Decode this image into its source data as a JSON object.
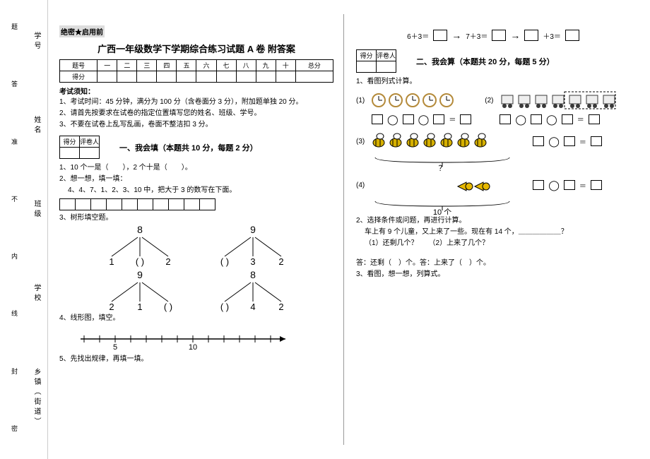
{
  "binding": {
    "outer": [
      "乡镇（街道）",
      "学校",
      "班级",
      "姓名",
      "学号"
    ],
    "inner": [
      "密",
      "封",
      "线",
      "内",
      "不",
      "准",
      "答",
      "题"
    ]
  },
  "confidential": "绝密★启用前",
  "title": "广西一年级数学下学期综合练习试题 A 卷  附答案",
  "score_table": {
    "headers": [
      "题号",
      "一",
      "二",
      "三",
      "四",
      "五",
      "六",
      "七",
      "八",
      "九",
      "十",
      "总分"
    ],
    "row_label": "得分"
  },
  "exam_notice_label": "考试须知：",
  "exam_notice": [
    "1、考试时间：45 分钟，满分为 100 分（含卷面分 3 分），附加题单独 20 分。",
    "2、请首先按要求在试卷的指定位置填写您的姓名、班级、学号。",
    "3、不要在试卷上乱写乱画，卷面不整洁扣 3 分。"
  ],
  "mini_score": {
    "c1": "得分",
    "c2": "评卷人"
  },
  "sectionA": {
    "title": "一、我会填（本题共 10 分，每题 2 分）",
    "q1": "1、10 个一是（　　），2 个十是（　　）。",
    "q2a": "2、想一想，填一填：",
    "q2b": "4、4、7、1、2、3、10 中，把大于 3 的数写在下面。",
    "q3": "3、树形填空题。",
    "trees": {
      "a": {
        "root": "8",
        "leaves": [
          "1",
          "( )",
          "2"
        ]
      },
      "b": {
        "root": "9",
        "leaves": [
          "( )",
          "3",
          "2"
        ]
      },
      "c": {
        "root": "9",
        "leaves": [
          "2",
          "1",
          "( )"
        ]
      },
      "d": {
        "root": "8",
        "leaves": [
          "( )",
          "4",
          "2"
        ]
      }
    },
    "q4": "4、线形图，填空。",
    "numberline": {
      "ticks": [
        "",
        "",
        "5",
        "",
        "",
        "",
        "",
        "10",
        "",
        "",
        "",
        "",
        ""
      ]
    },
    "q5": "5、先找出规律，再填一填。"
  },
  "pattern": {
    "a": "6＋3＝",
    "b": "7＋3＝",
    "c": "＋3＝"
  },
  "sectionB": {
    "title": "二、我会算（本题共 20 分，每题 5 分）",
    "q1": "1、看图列式计算。",
    "q1_label_a": "(1)",
    "q1_label_b": "(2)",
    "q1_label_c": "(3)",
    "q1_label_d": "(4)",
    "q1_brace_q": "？",
    "q1_brace_10": "10 个",
    "q2": "2、选择条件或问题，再进行计算。",
    "q2_body1": "车上有 9 个儿童，又上来了一些。现在有 14 个，＿＿＿＿＿＿？",
    "q2_body2": "（1）还剩几个？　　（2）上来了几个？",
    "q2_ans": "答：还剩（　）个。答：上来了（　）个。",
    "q3": "3、看图，想一想，列算式。"
  },
  "colors": {
    "clock": "#b48a3a",
    "bee": "#d6b000",
    "train": "#3a3a3a",
    "horn": "#e6b800"
  }
}
